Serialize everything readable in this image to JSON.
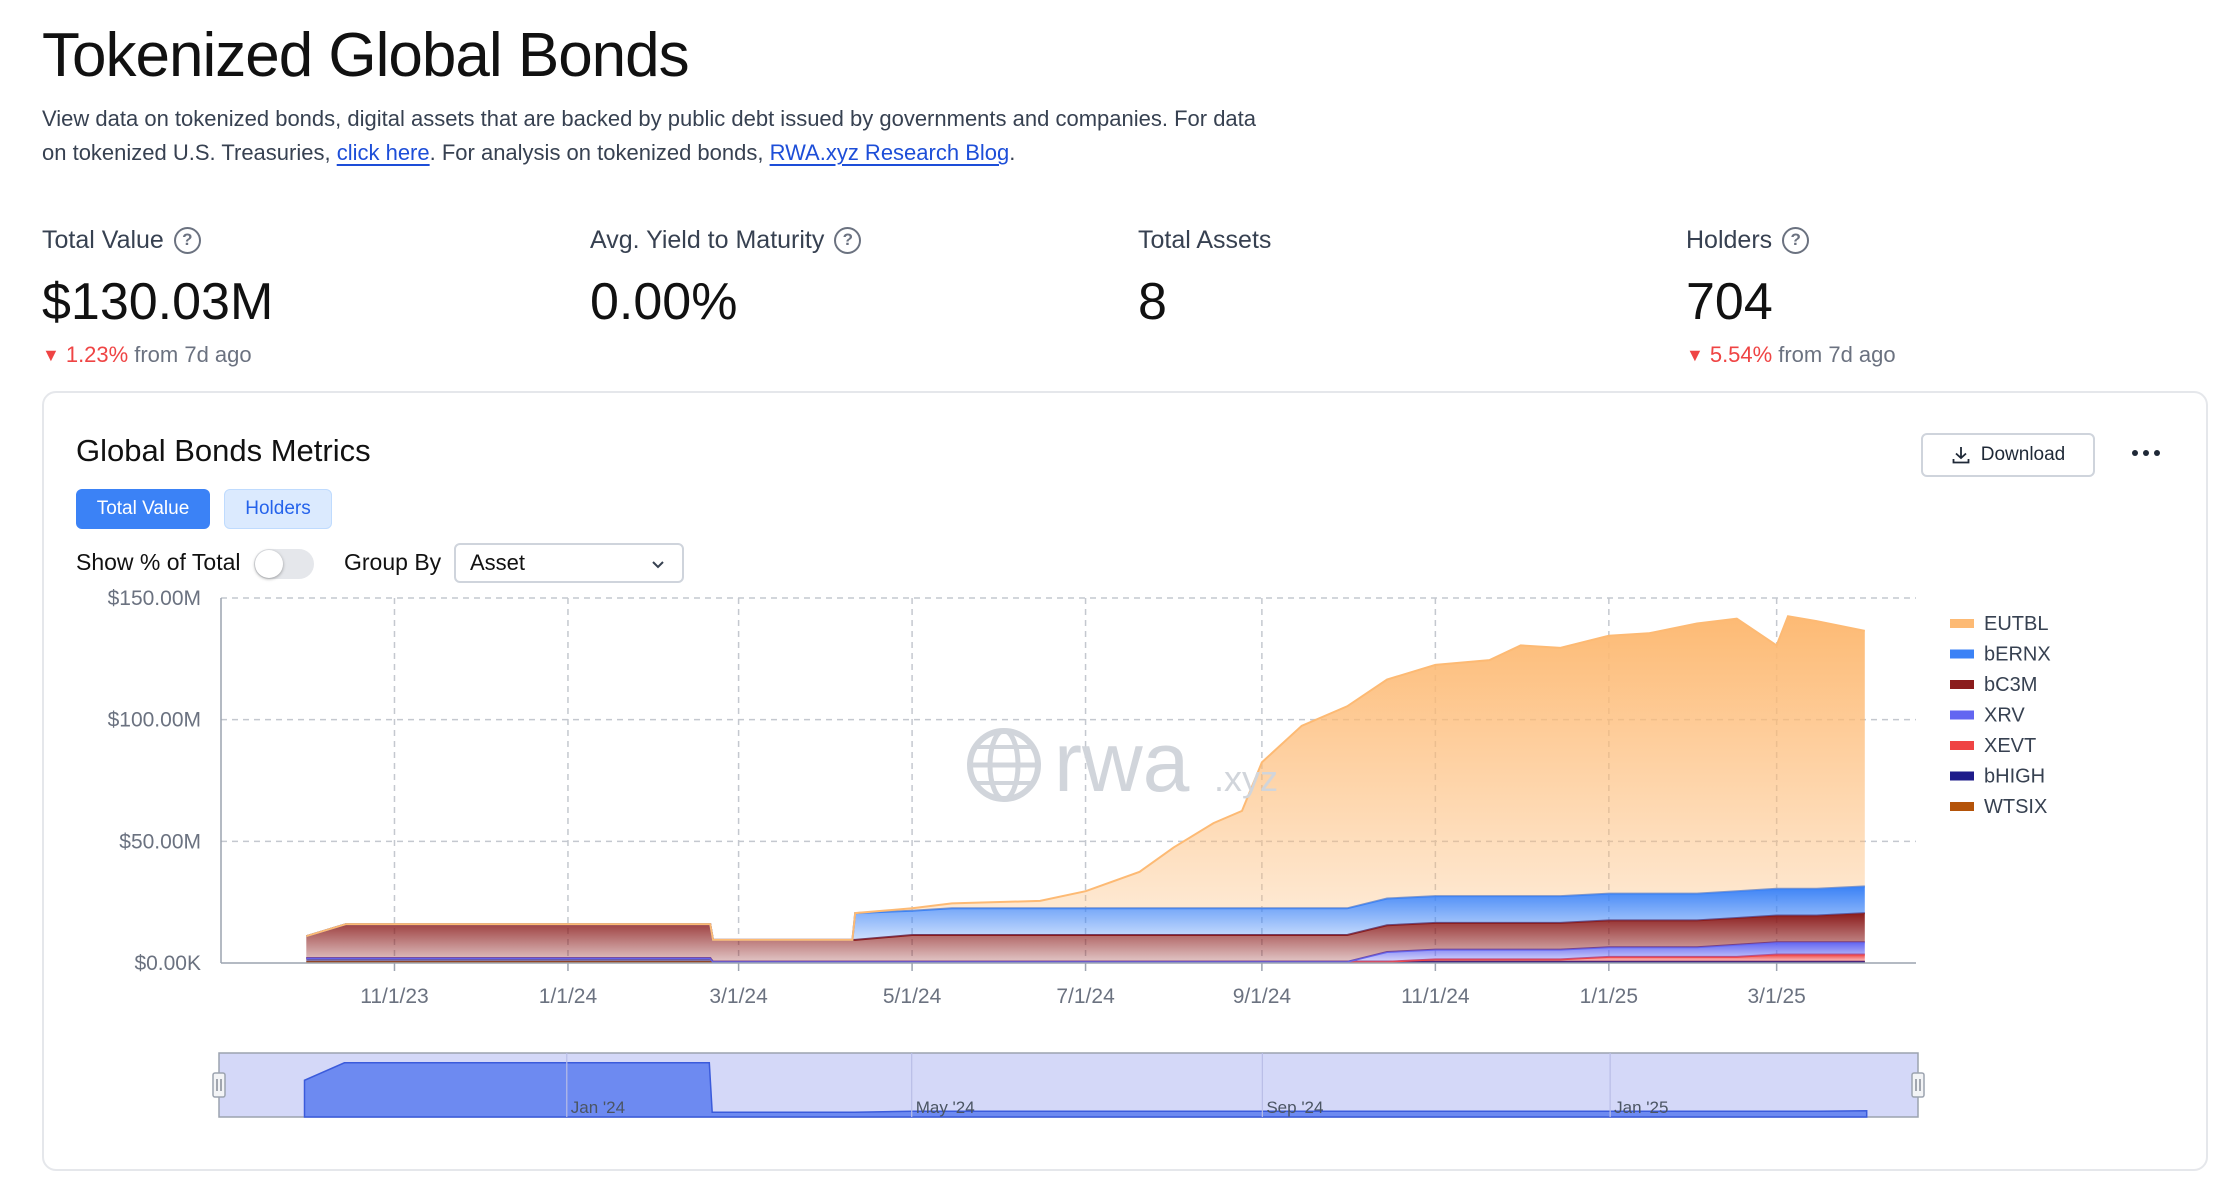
{
  "header": {
    "title": "Tokenized Global Bonds",
    "intro_text_1": "View data on tokenized bonds, digital assets that are backed by public debt issued by governments and companies. For data on tokenized U.S. Treasuries, ",
    "intro_link_1": "click here",
    "intro_text_2": ". For analysis on tokenized bonds, ",
    "intro_link_2": "RWA.xyz Research Blog",
    "intro_text_3": "."
  },
  "stats": {
    "total_value": {
      "label": "Total Value",
      "value": "$130.03M",
      "change": "1.23%",
      "change_suffix": "from 7d ago"
    },
    "avg_yield": {
      "label": "Avg. Yield to Maturity",
      "value": "0.00%"
    },
    "total_assets": {
      "label": "Total Assets",
      "value": "8"
    },
    "holders": {
      "label": "Holders",
      "value": "704",
      "change": "5.54%",
      "change_suffix": "from 7d ago"
    }
  },
  "card": {
    "title": "Global Bonds Metrics",
    "download_label": "Download",
    "tabs": [
      "Total Value",
      "Holders"
    ],
    "active_tab": "Total Value",
    "show_pct_label": "Show % of Total",
    "group_by_label": "Group By",
    "group_by_value": "Asset",
    "watermark_main": "rwa",
    "watermark_suffix": ".xyz"
  },
  "colors": {
    "accent": "#3b82f6",
    "negative": "#ef4444",
    "EUTBL": "#fdba74",
    "bERNX": "#3b82f6",
    "bC3M": "#8b1c1c",
    "XRV": "#6366f1",
    "XEVT": "#ef4444",
    "bHIGH": "#1e1b8a",
    "WTSIX": "#b45309"
  },
  "chart_data": {
    "type": "area",
    "stacked": true,
    "x_unit": "date",
    "x_ticks": [
      "11/1/23",
      "1/1/24",
      "3/1/24",
      "5/1/24",
      "7/1/24",
      "9/1/24",
      "11/1/24",
      "1/1/25",
      "3/1/25"
    ],
    "y_ticks": [
      "$0.00K",
      "$50.00M",
      "$100.00M",
      "$150.00M"
    ],
    "ylim": [
      0,
      150
    ],
    "y_unit": "$M",
    "grid": true,
    "legend_position": "right",
    "x": [
      "2023-10-01",
      "2023-10-15",
      "2023-11-15",
      "2024-01-01",
      "2024-02-20",
      "2024-02-21",
      "2024-04-10",
      "2024-04-11",
      "2024-05-01",
      "2024-05-15",
      "2024-06-15",
      "2024-07-01",
      "2024-07-20",
      "2024-08-01",
      "2024-08-15",
      "2024-08-25",
      "2024-09-01",
      "2024-09-15",
      "2024-10-01",
      "2024-10-15",
      "2024-11-01",
      "2024-11-20",
      "2024-12-01",
      "2024-12-15",
      "2025-01-01",
      "2025-01-15",
      "2025-02-01",
      "2025-02-15",
      "2025-03-01",
      "2025-03-05",
      "2025-03-15",
      "2025-04-01"
    ],
    "series": [
      {
        "name": "WTSIX",
        "values": [
          0.5,
          0.5,
          0.5,
          0.5,
          0.5,
          0.5,
          0.5,
          0.5,
          0.5,
          0.5,
          0.5,
          0.5,
          0.5,
          0.5,
          0.5,
          0.5,
          0.5,
          0.5,
          0.5,
          0.5,
          0.5,
          0.5,
          0.5,
          0.5,
          0.5,
          0.5,
          0.5,
          0.5,
          0.5,
          0.5,
          0.5,
          0.5
        ]
      },
      {
        "name": "bHIGH",
        "values": [
          1.5,
          1.5,
          1.5,
          1.5,
          1.5,
          0,
          0,
          0,
          0,
          0,
          0,
          0,
          0,
          0,
          0,
          0,
          0,
          0,
          0,
          0,
          0,
          0,
          0,
          0,
          0,
          0,
          0,
          0,
          0,
          0,
          0,
          0
        ]
      },
      {
        "name": "XEVT",
        "values": [
          0,
          0,
          0,
          0,
          0,
          0,
          0,
          0,
          0,
          0,
          0,
          0,
          0,
          0,
          0,
          0,
          0,
          0,
          0,
          0,
          1,
          1,
          1,
          1,
          2,
          2,
          2,
          2,
          3,
          3,
          3,
          3
        ]
      },
      {
        "name": "XRV",
        "values": [
          0,
          0,
          0,
          0,
          0,
          0,
          0,
          0,
          0,
          0,
          0,
          0,
          0,
          0,
          0,
          0,
          0,
          0,
          0,
          4,
          4,
          4,
          4,
          4,
          4,
          4,
          4,
          5,
          5,
          5,
          5,
          5
        ]
      },
      {
        "name": "bC3M",
        "values": [
          9,
          14,
          14,
          14,
          14,
          9,
          9,
          9,
          11,
          11,
          11,
          11,
          11,
          11,
          11,
          11,
          11,
          11,
          11,
          11,
          11,
          11,
          11,
          11,
          11,
          11,
          11,
          11,
          11,
          11,
          11,
          12
        ]
      },
      {
        "name": "bERNX",
        "values": [
          0,
          0,
          0,
          0,
          0,
          0,
          0,
          11,
          10,
          11,
          11,
          11,
          11,
          11,
          11,
          11,
          11,
          11,
          11,
          11,
          11,
          11,
          11,
          11,
          11,
          11,
          11,
          11,
          11,
          11,
          11,
          11
        ]
      },
      {
        "name": "EUTBL",
        "values": [
          0,
          0,
          0,
          0,
          0,
          0,
          0,
          0,
          1,
          2,
          3,
          7,
          15,
          25,
          35,
          40,
          60,
          75,
          83,
          90,
          95,
          97,
          103,
          102,
          106,
          107,
          111,
          112,
          100,
          112,
          110,
          105
        ]
      }
    ],
    "navigator_ticks": [
      "Jan '24",
      "May '24",
      "Sep '24",
      "Jan '25"
    ]
  }
}
